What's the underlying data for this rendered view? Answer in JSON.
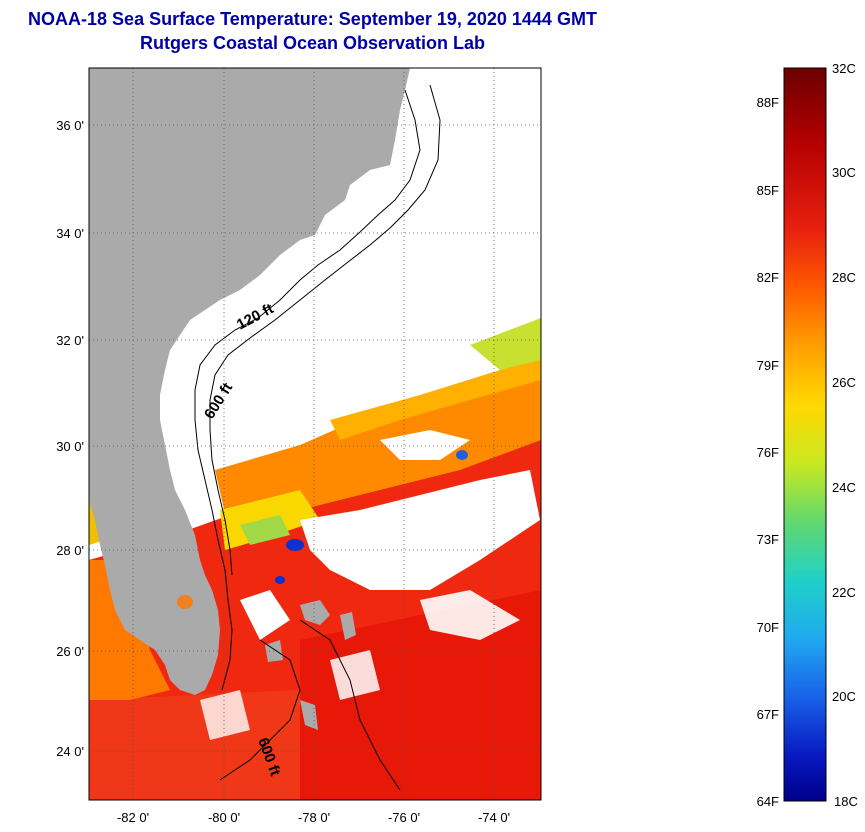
{
  "title": {
    "line1": "NOAA-18 Sea Surface Temperature:  September 19, 2020 1444 GMT",
    "line2": "Rutgers Coastal Ocean Observation Lab"
  },
  "map": {
    "lat_labels": [
      "36 0'",
      "34 0'",
      "32 0'",
      "30 0'",
      "28 0'",
      "26 0'",
      "24 0'"
    ],
    "lon_labels": [
      "-82 0'",
      "-80 0'",
      "-78 0'",
      "-76 0'",
      "-74 0'"
    ],
    "contour_labels": [
      "120 ft",
      "600 ft",
      "600 ft"
    ],
    "land_color": "#aaaaaa",
    "cloud_color": "#ffffff"
  },
  "colorbar": {
    "celsius_labels": [
      "32C",
      "30C",
      "28C",
      "26C",
      "24C",
      "22C",
      "20C",
      "18C"
    ],
    "fahrenheit_labels": [
      "88F",
      "85F",
      "82F",
      "79F",
      "76F",
      "73F",
      "70F",
      "67F",
      "64F"
    ],
    "colors": [
      "#7a0000",
      "#c80000",
      "#f03010",
      "#ff7000",
      "#ffb800",
      "#f8f000",
      "#a0e030",
      "#30d8a0",
      "#20c8e8",
      "#2090f0",
      "#1040e0",
      "#0000a0"
    ]
  }
}
